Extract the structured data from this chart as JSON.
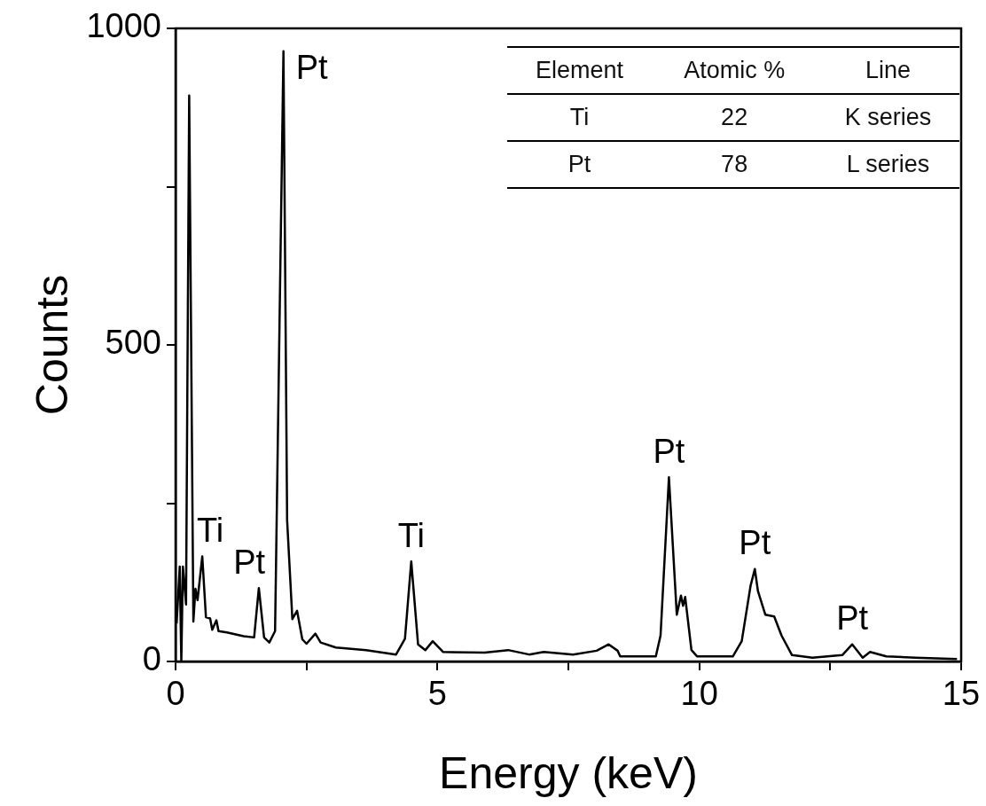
{
  "chart_data": [
    {
      "type": "line",
      "xlabel": "Energy (keV)",
      "ylabel": "Counts",
      "xlim": [
        0,
        15
      ],
      "xticks": [
        0,
        {
          "value": 2.5,
          "label": null
        },
        5,
        {
          "value": 7.5,
          "label": null
        },
        10,
        {
          "value": 12.5,
          "label": null
        },
        15
      ],
      "ylim": [
        0,
        1000
      ],
      "yticks": [
        0,
        {
          "value": 250,
          "label": null
        },
        500,
        {
          "value": 750,
          "label": null
        },
        1000
      ],
      "series": [
        {
          "color": "#000000",
          "x": [
            0.02,
            0.08,
            0.11,
            0.14,
            0.2,
            0.26,
            0.34,
            0.38,
            0.42,
            0.51,
            0.58,
            0.66,
            0.7,
            0.78,
            0.82,
            0.98,
            1.3,
            1.5,
            1.59,
            1.69,
            1.79,
            1.9,
            2.06,
            2.13,
            2.23,
            2.32,
            2.42,
            2.5,
            2.67,
            2.77,
            3.06,
            3.64,
            4.21,
            4.38,
            4.5,
            4.63,
            4.77,
            4.91,
            5.11,
            5.9,
            6.35,
            6.75,
            7.03,
            7.59,
            8.04,
            8.27,
            8.44,
            8.49,
            9.17,
            9.26,
            9.42,
            9.57,
            9.65,
            9.69,
            9.73,
            9.85,
            9.96,
            10.64,
            10.81,
            10.98,
            11.06,
            11.12,
            11.26,
            11.43,
            11.57,
            11.77,
            12.16,
            12.73,
            12.92,
            13.12,
            13.26,
            13.57,
            14.13,
            14.92
          ],
          "values": [
            60,
            150,
            0,
            150,
            90,
            894,
            63,
            115,
            97,
            166,
            70,
            68,
            50,
            65,
            48,
            46,
            40,
            38,
            116,
            38,
            30,
            48,
            964,
            223,
            67,
            80,
            35,
            28,
            44,
            30,
            22,
            18,
            11,
            36,
            158,
            27,
            18,
            32,
            15,
            14,
            18,
            11,
            15,
            11,
            17,
            27,
            17,
            8,
            8,
            41,
            291,
            74,
            104,
            88,
            102,
            18,
            8,
            8,
            32,
            120,
            146,
            111,
            74,
            71,
            41,
            10,
            6,
            10,
            27,
            6,
            15,
            8,
            6,
            4
          ]
        }
      ],
      "annotations": [
        {
          "text": "Ti",
          "x": 0.51,
          "y": 166
        },
        {
          "text": "Pt",
          "x": 1.59,
          "y": 116
        },
        {
          "text": "Pt",
          "x": 2.06,
          "y": 964
        },
        {
          "text": "Ti",
          "x": 4.5,
          "y": 158
        },
        {
          "text": "Pt",
          "x": 9.42,
          "y": 291
        },
        {
          "text": "Pt",
          "x": 11.06,
          "y": 146
        },
        {
          "text": "Pt",
          "x": 12.92,
          "y": 27
        }
      ]
    },
    {
      "type": "other",
      "annotations": [
        "Element",
        "Atomic %",
        "Line"
      ],
      "categories": [
        "Ti",
        "Pt"
      ],
      "values": [
        22,
        78
      ],
      "data_labels": true,
      "y2_categories": [
        "K series",
        "L series"
      ]
    }
  ]
}
